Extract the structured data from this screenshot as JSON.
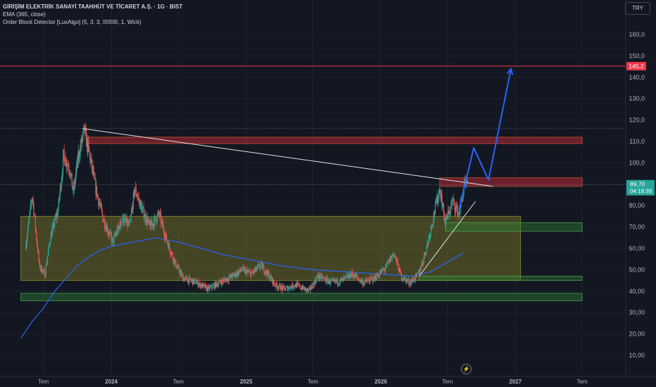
{
  "header": {
    "symbol_title": "GİRİŞİM ELEKTRİK SANAYİ TAAHHÜT VE TİCARET A.Ş. · 1G · BIST",
    "indicator_ema": "EMA (365, close)",
    "indicator_ob": "Order Block Detector [LuxAlgo] (5, 3, 3, ☒☒☒, 1, Wick)",
    "currency": "TRY"
  },
  "flash_icon": "lightning-icon",
  "colors": {
    "background": "#131722",
    "up": "#26a69a",
    "down": "#ef5350",
    "ema": "#2962ff",
    "arrow": "#2962ff",
    "trendline": "#e0e3eb",
    "bear_ob": "#b22833",
    "bull_ob": "#2e7d32",
    "range_zone": "#7f7f28",
    "h_line": "#f23645"
  },
  "chart_data": {
    "type": "candlestick",
    "y_axis": {
      "ticks": [
        "160,0",
        "150,0",
        "140,0",
        "130,0",
        "120,0",
        "110,0",
        "100,0",
        "90,00",
        "80,00",
        "70,00",
        "60,00",
        "50,00",
        "40,00",
        "30,00",
        "20,00",
        "10,00"
      ],
      "tick_values": [
        160,
        150,
        140,
        130,
        120,
        110,
        100,
        90,
        80,
        70,
        60,
        50,
        40,
        30,
        20,
        10
      ],
      "range": [
        6,
        172
      ]
    },
    "x_axis": {
      "labels": [
        "Tem",
        "2024",
        "Tem",
        "2025",
        "Tem",
        "2026",
        "Tem",
        "2027",
        "Tem"
      ],
      "label_dates": [
        "2023-07-01",
        "2024-01-01",
        "2024-07-01",
        "2025-01-01",
        "2025-07-01",
        "2026-01-01",
        "2026-07-01",
        "2027-01-01",
        "2027-07-01"
      ]
    },
    "price_path": [
      [
        "2023-05-15",
        62
      ],
      [
        "2023-06-01",
        85
      ],
      [
        "2023-06-20",
        52
      ],
      [
        "2023-07-05",
        48
      ],
      [
        "2023-07-20",
        65
      ],
      [
        "2023-08-10",
        78
      ],
      [
        "2023-08-25",
        103
      ],
      [
        "2023-09-10",
        98
      ],
      [
        "2023-09-20",
        86
      ],
      [
        "2023-10-05",
        104
      ],
      [
        "2023-10-20",
        115
      ],
      [
        "2023-11-05",
        102
      ],
      [
        "2023-11-20",
        88
      ],
      [
        "2023-12-10",
        74
      ],
      [
        "2024-01-05",
        63
      ],
      [
        "2024-02-01",
        74
      ],
      [
        "2024-02-20",
        70
      ],
      [
        "2024-03-05",
        88
      ],
      [
        "2024-03-25",
        78
      ],
      [
        "2024-04-15",
        70
      ],
      [
        "2024-05-10",
        76
      ],
      [
        "2024-05-30",
        64
      ],
      [
        "2024-06-25",
        52
      ],
      [
        "2024-07-15",
        46
      ],
      [
        "2024-08-20",
        44
      ],
      [
        "2024-09-20",
        41
      ],
      [
        "2024-10-20",
        44
      ],
      [
        "2024-11-25",
        47
      ],
      [
        "2024-12-20",
        50
      ],
      [
        "2025-01-15",
        48
      ],
      [
        "2025-02-10",
        52
      ],
      [
        "2025-03-01",
        48
      ],
      [
        "2025-03-20",
        43
      ],
      [
        "2025-04-15",
        41
      ],
      [
        "2025-05-15",
        43
      ],
      [
        "2025-06-20",
        40
      ],
      [
        "2025-07-15",
        47
      ],
      [
        "2025-08-20",
        44
      ],
      [
        "2025-09-20",
        45
      ],
      [
        "2025-10-15",
        48
      ],
      [
        "2025-11-15",
        44
      ],
      [
        "2025-12-15",
        46
      ],
      [
        "2026-01-15",
        51
      ],
      [
        "2026-02-05",
        58
      ],
      [
        "2026-02-25",
        47
      ],
      [
        "2026-03-20",
        44
      ],
      [
        "2026-04-10",
        47
      ],
      [
        "2026-04-25",
        54
      ],
      [
        "2026-05-10",
        64
      ],
      [
        "2026-05-25",
        76
      ],
      [
        "2026-06-10",
        88
      ],
      [
        "2026-06-25",
        72
      ],
      [
        "2026-07-15",
        82
      ],
      [
        "2026-08-01",
        76
      ],
      [
        "2026-08-15",
        89
      ],
      [
        "2026-08-25",
        89.7
      ]
    ],
    "ema_path": [
      [
        "2023-05-01",
        18
      ],
      [
        "2023-06-01",
        26
      ],
      [
        "2023-07-01",
        32
      ],
      [
        "2023-08-01",
        40
      ],
      [
        "2023-09-01",
        46
      ],
      [
        "2023-10-01",
        52
      ],
      [
        "2023-11-01",
        56
      ],
      [
        "2023-12-01",
        59
      ],
      [
        "2024-01-01",
        61
      ],
      [
        "2024-03-01",
        63
      ],
      [
        "2024-05-01",
        65
      ],
      [
        "2024-07-01",
        63
      ],
      [
        "2024-09-01",
        60
      ],
      [
        "2024-11-01",
        57
      ],
      [
        "2025-01-01",
        55
      ],
      [
        "2025-04-01",
        52
      ],
      [
        "2025-07-01",
        50
      ],
      [
        "2025-10-01",
        49
      ],
      [
        "2026-01-01",
        48
      ],
      [
        "2026-04-01",
        47
      ],
      [
        "2026-05-15",
        49
      ],
      [
        "2026-06-15",
        52
      ],
      [
        "2026-07-15",
        55
      ],
      [
        "2026-08-15",
        58
      ]
    ],
    "horizontal_line": {
      "price": 145.2,
      "label": "145,2"
    },
    "last_price": {
      "label": "89,70",
      "countdown": "04:18:39",
      "value": 89.7
    },
    "zones": [
      {
        "type": "bear",
        "from": "2023-11-01",
        "to": "2027-07-01",
        "low": 109,
        "high": 112
      },
      {
        "type": "bear",
        "from": "2026-06-10",
        "to": "2027-07-01",
        "low": 89,
        "high": 93
      },
      {
        "type": "range",
        "from": "2023-05-01",
        "to": "2027-01-15",
        "low": 45,
        "high": 75
      },
      {
        "type": "bull",
        "from": "2026-06-25",
        "to": "2027-07-01",
        "low": 68,
        "high": 72
      },
      {
        "type": "bull",
        "from": "2026-04-15",
        "to": "2027-07-01",
        "low": 45,
        "high": 47
      },
      {
        "type": "bull",
        "from": "2023-05-01",
        "to": "2027-07-01",
        "low": 35.5,
        "high": 39
      }
    ],
    "drawings": {
      "trendline": [
        [
          "2023-10-15",
          116
        ],
        [
          "2026-11-01",
          89
        ]
      ],
      "rising_line": [
        [
          "2026-04-15",
          47
        ],
        [
          "2026-09-15",
          82
        ]
      ],
      "forecast_arrow": [
        [
          "2026-08-01",
          78
        ],
        [
          "2026-09-10",
          107
        ],
        [
          "2026-10-20",
          92
        ],
        [
          "2026-12-20",
          144
        ]
      ]
    },
    "dotted_lines": [
      116,
      89.7
    ]
  }
}
